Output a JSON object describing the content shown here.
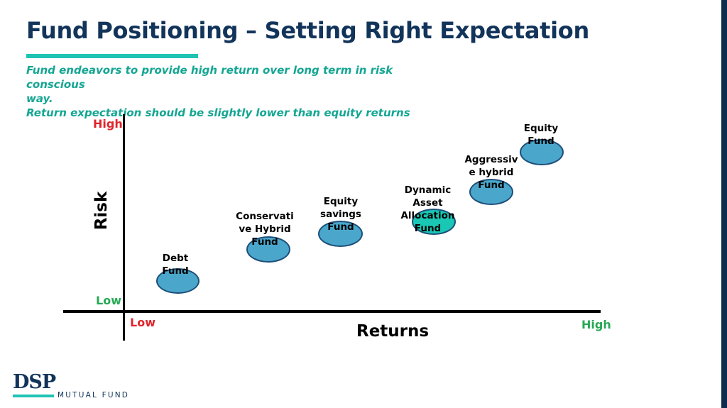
{
  "slide": {
    "title": "Fund Positioning – Setting Right Expectation",
    "subtitle_lines": [
      "Fund endeavors to provide high return over long term in risk conscious",
      "way.",
      "Return expectation should be slightly lower than equity returns"
    ]
  },
  "diagram": {
    "y_axis": {
      "title": "Risk",
      "high_label": "High",
      "low_label": "Low"
    },
    "x_axis": {
      "title": "Returns",
      "low_label": "Low",
      "high_label": "High"
    },
    "funds": [
      {
        "label": "Debt\nFund",
        "color": "#4aa7cb"
      },
      {
        "label": "Conservati\nve Hybrid\nFund",
        "color": "#4aa7cb"
      },
      {
        "label": "Equity\nsavings\nFund",
        "color": "#4aa7cb"
      },
      {
        "label": "Dynamic\nAsset\nAllocation\nFund",
        "color": "#19c7b4"
      },
      {
        "label": "Aggressiv\ne hybrid\nFund",
        "color": "#4aa7cb"
      },
      {
        "label": "Equity\nFund",
        "color": "#4aa7cb"
      }
    ]
  },
  "logo": {
    "brand": "DSP",
    "tagline": "MUTUAL FUND"
  },
  "colors": {
    "title": "#12345a",
    "accent": "#1fc3b4",
    "subtitle": "#14a693",
    "high": "#e0242b",
    "low": "#27a955"
  }
}
